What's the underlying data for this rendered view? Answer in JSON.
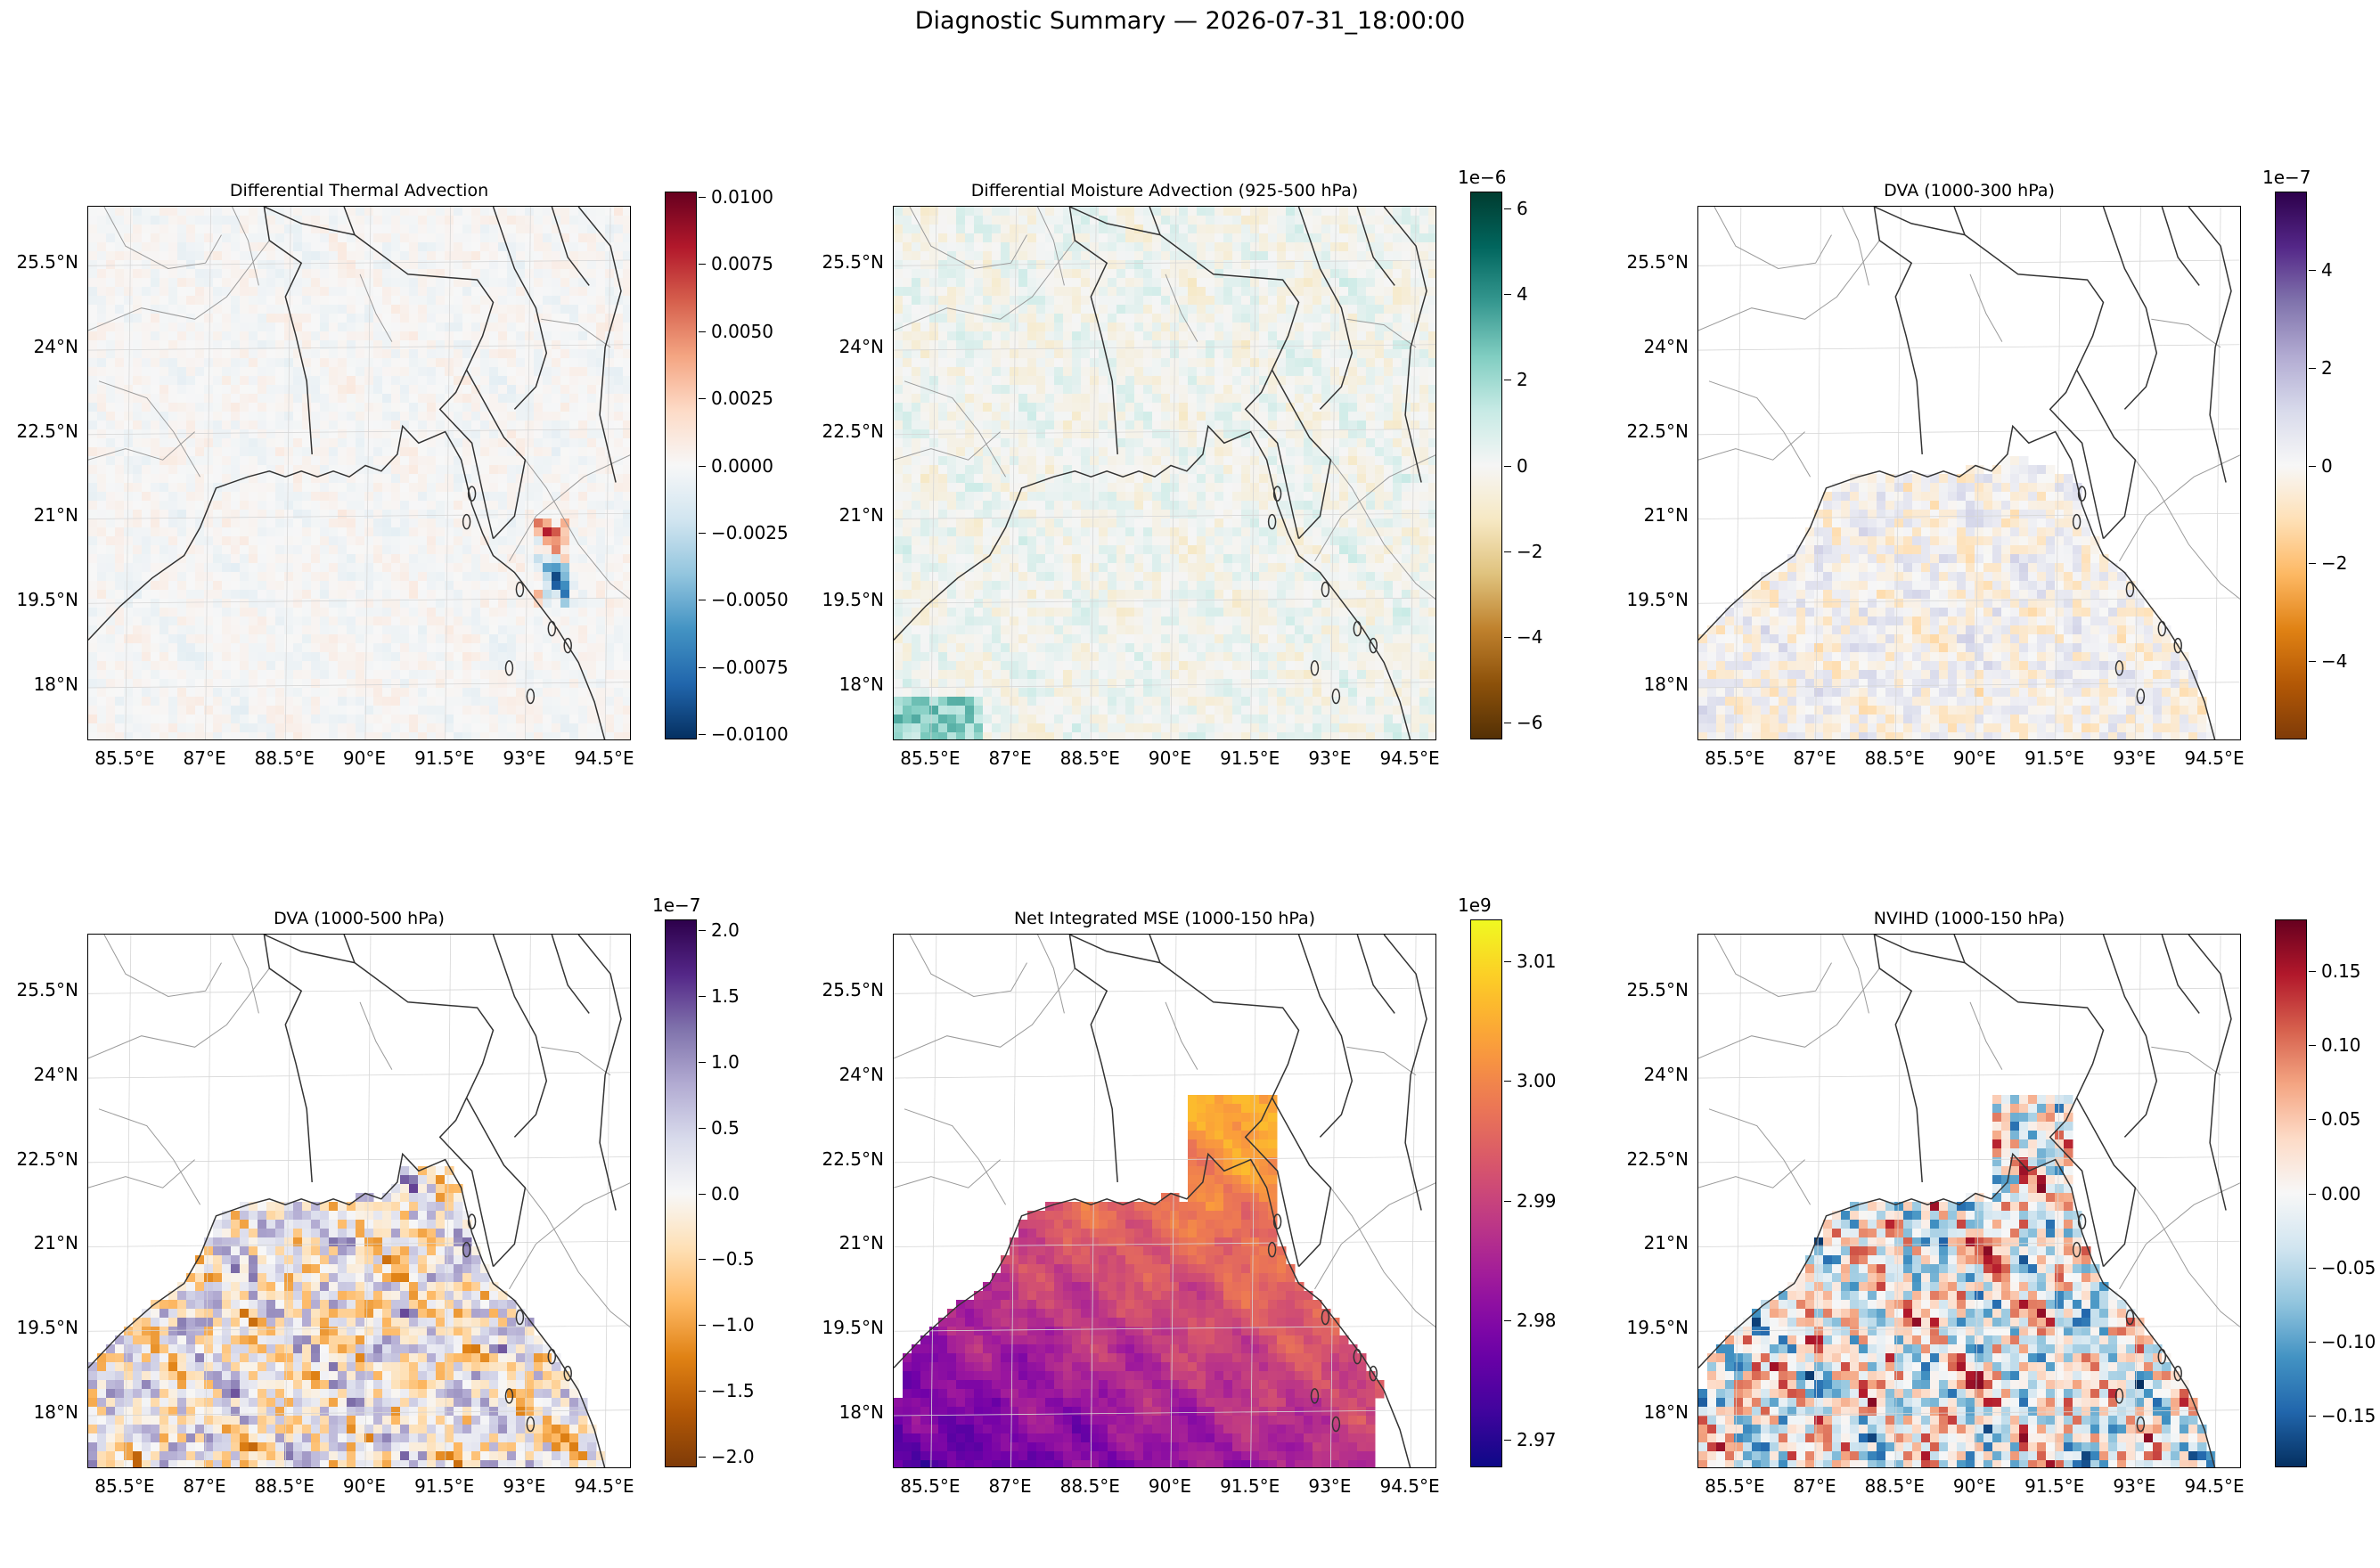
{
  "suptitle": "Diagnostic Summary — 2026-07-31_18:00:00",
  "xticks": [
    "85.5°E",
    "87°E",
    "88.5°E",
    "90°E",
    "91.5°E",
    "93°E",
    "94.5°E"
  ],
  "yticks": [
    "25.5°N",
    "24°N",
    "22.5°N",
    "21°N",
    "19.5°N",
    "18°N"
  ],
  "chart_data": [
    {
      "type": "heatmap",
      "title": "Differential Thermal Advection",
      "xlim": [
        84.8,
        95.0
      ],
      "ylim": [
        17.0,
        26.5
      ],
      "colormap": "RdBu_r",
      "colorbar": {
        "range": [
          -0.0102,
          0.0102
        ],
        "ticks": [
          "0.0100",
          "0.0075",
          "0.0050",
          "0.0025",
          "0.0000",
          "−0.0025",
          "−0.0050",
          "−0.0075",
          "−0.0100"
        ],
        "exponent": ""
      },
      "field_note": ""
    },
    {
      "type": "heatmap",
      "title": "Differential Moisture Advection (925-500 hPa)",
      "xlim": [
        84.8,
        95.0
      ],
      "ylim": [
        17.0,
        26.5
      ],
      "colormap": "BrBG",
      "colorbar": {
        "range": [
          -6.4,
          6.4
        ],
        "ticks": [
          "6",
          "4",
          "2",
          "0",
          "−2",
          "−4",
          "−6"
        ],
        "exponent": "1e−6"
      },
      "field_note": ""
    },
    {
      "type": "heatmap",
      "title": "DVA (1000-300 hPa)",
      "xlim": [
        84.8,
        95.0
      ],
      "ylim": [
        17.0,
        26.5
      ],
      "colormap": "PuOr",
      "colorbar": {
        "range": [
          -5.6,
          5.6
        ],
        "ticks": [
          "4",
          "2",
          "0",
          "−2",
          "−4"
        ],
        "exponent": "1e−7"
      },
      "field_note": ""
    },
    {
      "type": "heatmap",
      "title": "DVA (1000-500 hPa)",
      "xlim": [
        84.8,
        95.0
      ],
      "ylim": [
        17.0,
        26.5
      ],
      "colormap": "PuOr",
      "colorbar": {
        "range": [
          -2.08,
          2.08
        ],
        "ticks": [
          "2.0",
          "1.5",
          "1.0",
          "0.5",
          "0.0",
          "−0.5",
          "−1.0",
          "−1.5",
          "−2.0"
        ],
        "exponent": "1e−7"
      },
      "field_note": ""
    },
    {
      "type": "heatmap",
      "title": "Net Integrated MSE (1000-150 hPa)",
      "xlim": [
        84.8,
        95.0
      ],
      "ylim": [
        17.0,
        26.5
      ],
      "colormap": "plasma",
      "colorbar": {
        "range": [
          2.9677,
          3.0135
        ],
        "ticks": [
          "3.01",
          "3.00",
          "2.99",
          "2.98",
          "2.97"
        ],
        "exponent": "1e9"
      },
      "field_note": ""
    },
    {
      "type": "heatmap",
      "title": "NVIHD (1000-150 hPa)",
      "xlim": [
        84.8,
        95.0
      ],
      "ylim": [
        17.0,
        26.5
      ],
      "colormap": "RdBu_r",
      "colorbar": {
        "range": [
          -0.185,
          0.185
        ],
        "ticks": [
          "0.15",
          "0.10",
          "0.05",
          "0.00",
          "−0.05",
          "−0.10",
          "−0.15"
        ],
        "exponent": ""
      },
      "field_note": ""
    }
  ]
}
